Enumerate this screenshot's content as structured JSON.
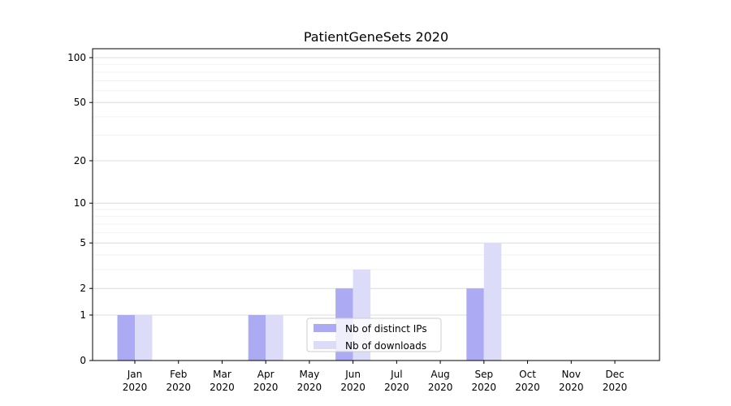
{
  "title": "PatientGeneSets 2020",
  "chart_data": {
    "type": "bar",
    "title": "PatientGeneSets 2020",
    "categories": [
      "Jan",
      "Feb",
      "Mar",
      "Apr",
      "May",
      "Jun",
      "Jul",
      "Aug",
      "Sep",
      "Oct",
      "Nov",
      "Dec"
    ],
    "category_year": "2020",
    "series": [
      {
        "name": "Nb of distinct IPs",
        "color": "#abaaf3",
        "values": [
          1,
          0,
          0,
          1,
          0,
          2,
          0,
          0,
          2,
          0,
          0,
          0
        ]
      },
      {
        "name": "Nb of downloads",
        "color": "#dcdcf9",
        "values": [
          1,
          0,
          0,
          1,
          0,
          3,
          0,
          0,
          5,
          0,
          0,
          0
        ]
      }
    ],
    "yscale": "log1p",
    "ylim": [
      0,
      100
    ],
    "y_major_ticks": [
      0,
      1,
      2,
      5,
      10,
      20,
      50,
      100
    ],
    "y_minor_gridlines": [
      3,
      4,
      6,
      7,
      8,
      9,
      30,
      40,
      60,
      70,
      80,
      90
    ],
    "xlabel": "",
    "ylabel": "",
    "grid": "horizontal",
    "legend_position": "lower center",
    "colors": {
      "major_grid": "#dcdcdc",
      "minor_grid": "#f2f2f2",
      "axis": "#000000",
      "legend_border": "#cccccc"
    }
  }
}
